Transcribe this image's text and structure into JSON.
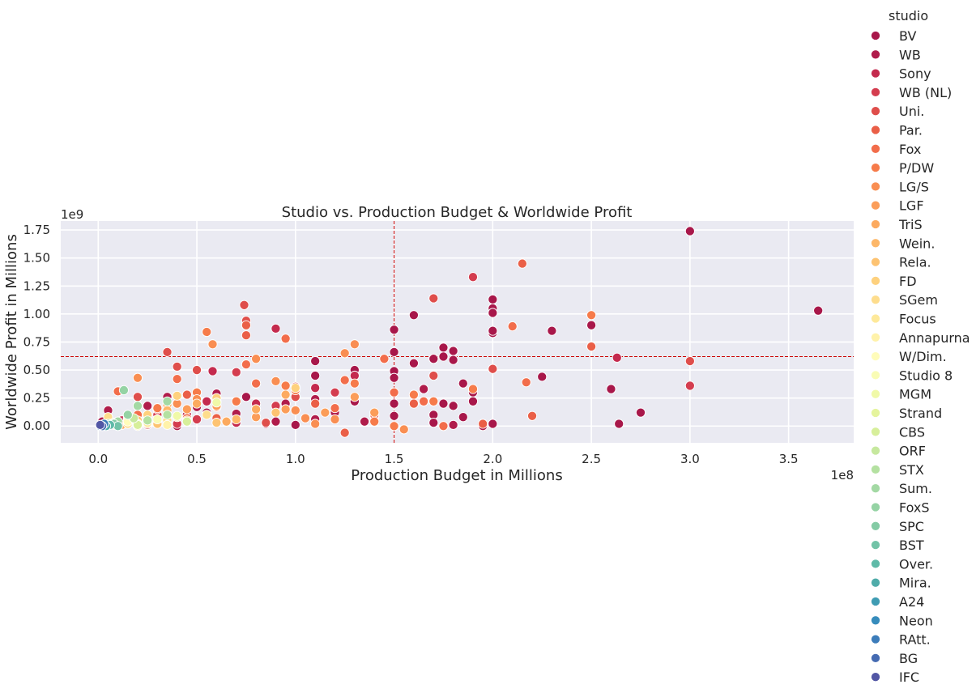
{
  "chart_data": {
    "type": "scatter",
    "title": "Studio vs. Production Budget & Worldwide Profit",
    "xlabel": "Production Budget in Millions",
    "ylabel": "Worldwide Profit in Millions",
    "x_offset_label": "1e8",
    "y_offset_label": "1e9",
    "xlim": [
      -0.19,
      3.83
    ],
    "ylim": [
      -0.15,
      1.83
    ],
    "x_ticks": [
      0.0,
      0.5,
      1.0,
      1.5,
      2.0,
      2.5,
      3.0,
      3.5
    ],
    "x_tick_labels": [
      "0.0",
      "0.5",
      "1.0",
      "1.5",
      "2.0",
      "2.5",
      "3.0",
      "3.5"
    ],
    "y_ticks": [
      0.0,
      0.25,
      0.5,
      0.75,
      1.0,
      1.25,
      1.5,
      1.75
    ],
    "y_tick_labels": [
      "0.00",
      "0.25",
      "0.50",
      "0.75",
      "1.00",
      "1.25",
      "1.50",
      "1.75"
    ],
    "vline_x": 1.5,
    "hline_y": 0.62,
    "grid": true,
    "legend_title": "studio",
    "legend_position": "right",
    "series": [
      {
        "name": "BV",
        "color": "#a8174a",
        "points": [
          [
            3.65,
            1.03
          ],
          [
            3.0,
            1.74
          ],
          [
            2.75,
            0.12
          ],
          [
            2.64,
            0.02
          ],
          [
            2.6,
            0.33
          ],
          [
            2.5,
            0.9
          ],
          [
            2.3,
            0.85
          ],
          [
            2.25,
            0.44
          ],
          [
            2.0,
            1.13
          ],
          [
            2.0,
            1.05
          ],
          [
            2.0,
            1.01
          ],
          [
            2.0,
            0.83
          ],
          [
            2.0,
            0.85
          ],
          [
            2.0,
            0.02
          ],
          [
            1.9,
            0.3
          ],
          [
            1.9,
            0.22
          ],
          [
            1.85,
            0.38
          ],
          [
            1.85,
            0.08
          ],
          [
            1.8,
            0.67
          ],
          [
            1.8,
            0.59
          ],
          [
            1.8,
            0.18
          ],
          [
            1.75,
            0.7
          ],
          [
            1.75,
            0.62
          ],
          [
            1.75,
            0.2
          ],
          [
            1.7,
            0.6
          ],
          [
            1.7,
            0.1
          ],
          [
            1.7,
            0.03
          ],
          [
            1.6,
            0.99
          ],
          [
            1.6,
            0.56
          ],
          [
            1.5,
            0.86
          ],
          [
            1.5,
            0.66
          ],
          [
            1.5,
            0.49
          ],
          [
            1.5,
            0.43
          ],
          [
            1.5,
            0.2
          ],
          [
            1.5,
            0.09
          ],
          [
            1.5,
            0.0
          ],
          [
            1.3,
            0.5
          ],
          [
            1.3,
            0.22
          ],
          [
            1.1,
            0.58
          ],
          [
            1.1,
            0.45
          ],
          [
            1.0,
            0.01
          ],
          [
            0.75,
            0.26
          ],
          [
            0.6,
            0.03
          ],
          [
            0.55,
            0.12
          ],
          [
            0.45,
            0.05
          ],
          [
            0.3,
            0.02
          ],
          [
            0.2,
            0.06
          ]
        ]
      },
      {
        "name": "WB",
        "color": "#b01c4b",
        "points": [
          [
            1.95,
            0.0
          ],
          [
            1.8,
            0.01
          ],
          [
            1.65,
            0.33
          ],
          [
            1.4,
            0.09
          ],
          [
            1.35,
            0.04
          ],
          [
            1.2,
            0.12
          ],
          [
            1.1,
            0.24
          ],
          [
            1.1,
            0.06
          ],
          [
            0.95,
            0.2
          ],
          [
            0.9,
            0.04
          ],
          [
            0.85,
            0.02
          ],
          [
            0.7,
            0.11
          ],
          [
            0.6,
            0.29
          ],
          [
            0.5,
            0.17
          ],
          [
            0.4,
            0.0
          ],
          [
            0.35,
            0.26
          ],
          [
            0.25,
            0.18
          ],
          [
            0.15,
            0.08
          ],
          [
            0.05,
            0.14
          ],
          [
            0.02,
            0.04
          ]
        ]
      },
      {
        "name": "Sony",
        "color": "#c42a4e",
        "points": [
          [
            2.63,
            0.61
          ],
          [
            1.3,
            0.45
          ],
          [
            1.1,
            0.34
          ],
          [
            0.9,
            0.87
          ],
          [
            0.8,
            0.2
          ],
          [
            0.7,
            0.03
          ],
          [
            0.58,
            0.49
          ],
          [
            0.55,
            0.22
          ],
          [
            0.45,
            0.1
          ],
          [
            0.35,
            0.06
          ],
          [
            0.25,
            0.01
          ],
          [
            0.12,
            0.05
          ]
        ]
      },
      {
        "name": "WB (NL)",
        "color": "#d43d4f",
        "points": [
          [
            3.0,
            0.36
          ],
          [
            1.9,
            1.33
          ],
          [
            1.2,
            0.3
          ],
          [
            1.0,
            0.35
          ],
          [
            0.9,
            0.18
          ],
          [
            0.7,
            0.48
          ],
          [
            0.5,
            0.06
          ],
          [
            0.4,
            0.02
          ],
          [
            0.3,
            0.1
          ]
        ]
      },
      {
        "name": "Uni.",
        "color": "#df4e4b",
        "points": [
          [
            3.0,
            0.58
          ],
          [
            2.0,
            0.51
          ],
          [
            1.7,
            1.14
          ],
          [
            1.7,
            0.45
          ],
          [
            1.6,
            0.28
          ],
          [
            1.4,
            0.1
          ],
          [
            1.0,
            0.26
          ],
          [
            0.85,
            0.03
          ],
          [
            0.75,
            0.94
          ],
          [
            0.74,
            1.08
          ],
          [
            0.6,
            0.22
          ],
          [
            0.5,
            0.5
          ],
          [
            0.4,
            0.53
          ],
          [
            0.35,
            0.66
          ],
          [
            0.2,
            0.26
          ]
        ]
      },
      {
        "name": "Par.",
        "color": "#ea5f47",
        "points": [
          [
            2.5,
            0.71
          ],
          [
            2.15,
            1.45
          ],
          [
            2.2,
            0.09
          ],
          [
            1.95,
            0.02
          ],
          [
            1.75,
            0.0
          ],
          [
            1.6,
            0.2
          ],
          [
            1.25,
            -0.06
          ],
          [
            1.1,
            0.2
          ],
          [
            0.75,
            0.81
          ],
          [
            0.75,
            0.9
          ],
          [
            0.6,
            0.07
          ],
          [
            0.45,
            0.28
          ],
          [
            0.3,
            0.15
          ],
          [
            0.15,
            0.03
          ]
        ]
      },
      {
        "name": "Fox",
        "color": "#f26d4b",
        "points": [
          [
            2.17,
            0.39
          ],
          [
            2.1,
            0.89
          ],
          [
            1.75,
            0.0
          ],
          [
            1.65,
            0.22
          ],
          [
            1.5,
            0.3
          ],
          [
            1.45,
            0.6
          ],
          [
            1.25,
            0.41
          ],
          [
            1.2,
            0.16
          ],
          [
            0.95,
            0.78
          ],
          [
            0.8,
            0.38
          ],
          [
            0.75,
            0.55
          ],
          [
            0.6,
            0.17
          ],
          [
            0.45,
            0.07
          ],
          [
            0.4,
            0.42
          ],
          [
            0.2,
            0.1
          ],
          [
            0.1,
            0.31
          ]
        ]
      },
      {
        "name": "P/DW",
        "color": "#f67b4a",
        "points": [
          [
            2.5,
            0.99
          ],
          [
            1.9,
            0.33
          ],
          [
            1.7,
            0.22
          ],
          [
            1.6,
            0.28
          ],
          [
            1.5,
            0.0
          ],
          [
            1.4,
            0.04
          ],
          [
            1.3,
            0.38
          ],
          [
            1.0,
            0.32
          ],
          [
            0.95,
            0.36
          ],
          [
            0.7,
            0.22
          ],
          [
            0.55,
            0.84
          ],
          [
            0.5,
            0.3
          ],
          [
            0.3,
            0.16
          ]
        ]
      },
      {
        "name": "LG/S",
        "color": "#f98e52",
        "points": [
          [
            1.55,
            -0.03
          ],
          [
            1.3,
            0.73
          ],
          [
            1.25,
            0.65
          ],
          [
            1.2,
            0.06
          ],
          [
            1.1,
            0.02
          ],
          [
            1.05,
            0.07
          ],
          [
            1.0,
            0.14
          ],
          [
            0.9,
            0.4
          ],
          [
            0.8,
            0.6
          ],
          [
            0.58,
            0.73
          ],
          [
            0.5,
            0.24
          ],
          [
            0.4,
            0.2
          ],
          [
            0.2,
            0.43
          ],
          [
            0.1,
            0.04
          ]
        ]
      },
      {
        "name": "LGF",
        "color": "#fb9d59",
        "points": [
          [
            1.4,
            0.12
          ],
          [
            1.3,
            0.26
          ],
          [
            1.15,
            0.12
          ],
          [
            0.95,
            0.15
          ],
          [
            0.8,
            0.08
          ],
          [
            0.6,
            0.18
          ],
          [
            0.45,
            0.15
          ],
          [
            0.3,
            0.04
          ],
          [
            0.15,
            0.02
          ],
          [
            0.05,
            0.01
          ]
        ]
      },
      {
        "name": "TriS",
        "color": "#fcaa5f",
        "points": [
          [
            0.95,
            0.28
          ],
          [
            0.8,
            0.15
          ],
          [
            0.65,
            0.04
          ],
          [
            0.5,
            0.2
          ],
          [
            0.35,
            0.19
          ],
          [
            0.25,
            0.08
          ],
          [
            0.12,
            0.01
          ]
        ]
      },
      {
        "name": "Wein.",
        "color": "#fdb768",
        "points": [
          [
            0.7,
            0.06
          ],
          [
            0.55,
            0.1
          ],
          [
            0.45,
            0.05
          ],
          [
            0.35,
            0.14
          ],
          [
            0.25,
            0.02
          ],
          [
            0.15,
            0.07
          ],
          [
            0.05,
            0.03
          ]
        ]
      },
      {
        "name": "Rela.",
        "color": "#fdc372",
        "points": [
          [
            0.9,
            0.12
          ],
          [
            0.6,
            0.03
          ],
          [
            0.4,
            0.08
          ],
          [
            0.3,
            0.02
          ],
          [
            0.2,
            0.05
          ],
          [
            0.08,
            0.01
          ]
        ]
      },
      {
        "name": "FD",
        "color": "#fed17e",
        "points": [
          [
            1.0,
            0.34
          ],
          [
            0.6,
            0.25
          ],
          [
            0.4,
            0.27
          ],
          [
            0.25,
            0.1
          ],
          [
            0.1,
            0.0
          ]
        ]
      },
      {
        "name": "SGem",
        "color": "#fedd8d",
        "points": [
          [
            0.55,
            0.1
          ],
          [
            0.35,
            0.05
          ],
          [
            0.15,
            0.02
          ],
          [
            0.05,
            0.08
          ]
        ]
      },
      {
        "name": "Focus",
        "color": "#fee99a",
        "points": [
          [
            0.25,
            0.03
          ],
          [
            0.15,
            0.06
          ],
          [
            0.06,
            0.02
          ],
          [
            0.02,
            0.01
          ]
        ]
      },
      {
        "name": "Annapurna",
        "color": "#fff2aa",
        "points": [
          [
            0.35,
            0.01
          ],
          [
            0.2,
            0.0
          ],
          [
            0.1,
            0.03
          ]
        ]
      },
      {
        "name": "W/Dim.",
        "color": "#fffcba",
        "points": [
          [
            0.15,
            0.04
          ],
          [
            0.08,
            0.02
          ],
          [
            0.03,
            0.0
          ]
        ]
      },
      {
        "name": "Studio 8",
        "color": "#f9fcb5",
        "points": [
          [
            0.3,
            0.06
          ]
        ]
      },
      {
        "name": "MGM",
        "color": "#f0f9a8",
        "points": [
          [
            0.6,
            0.21
          ],
          [
            0.4,
            0.09
          ],
          [
            0.2,
            0.02
          ]
        ]
      },
      {
        "name": "Strand",
        "color": "#e5f49d",
        "points": [
          [
            0.05,
            0.02
          ],
          [
            0.02,
            0.01
          ]
        ]
      },
      {
        "name": "CBS",
        "color": "#d7ef9b",
        "points": [
          [
            0.45,
            0.04
          ],
          [
            0.2,
            0.01
          ]
        ]
      },
      {
        "name": "ORF",
        "color": "#c6e89e",
        "points": [
          [
            0.18,
            0.07
          ],
          [
            0.08,
            0.03
          ]
        ]
      },
      {
        "name": "STX",
        "color": "#b4e1a1",
        "points": [
          [
            0.35,
            0.1
          ],
          [
            0.25,
            0.05
          ],
          [
            0.1,
            0.01
          ]
        ]
      },
      {
        "name": "Sum.",
        "color": "#a3d9a4",
        "points": [
          [
            0.35,
            0.22
          ],
          [
            0.2,
            0.18
          ],
          [
            0.1,
            0.04
          ]
        ]
      },
      {
        "name": "FoxS",
        "color": "#95d3a4",
        "points": [
          [
            0.13,
            0.32
          ],
          [
            0.15,
            0.1
          ],
          [
            0.05,
            0.02
          ]
        ]
      },
      {
        "name": "SPC",
        "color": "#84cba5",
        "points": [
          [
            0.08,
            0.02
          ],
          [
            0.03,
            0.01
          ]
        ]
      },
      {
        "name": "BST",
        "color": "#72c3a7",
        "points": [
          [
            0.1,
            0.0
          ]
        ]
      },
      {
        "name": "Over.",
        "color": "#5fbaa8",
        "points": [
          [
            0.06,
            0.01
          ]
        ]
      },
      {
        "name": "Mira.",
        "color": "#4faca9",
        "points": [
          [
            0.04,
            0.0
          ]
        ]
      },
      {
        "name": "A24",
        "color": "#3f9cb3",
        "points": [
          [
            0.02,
            0.01
          ]
        ]
      },
      {
        "name": "Neon",
        "color": "#368cbc",
        "points": [
          [
            0.01,
            0.0
          ]
        ]
      },
      {
        "name": "RAtt.",
        "color": "#3c7cba",
        "points": [
          [
            0.03,
            0.02
          ]
        ]
      },
      {
        "name": "BG",
        "color": "#456bb2",
        "points": [
          [
            0.02,
            0.0
          ]
        ]
      },
      {
        "name": "IFC",
        "color": "#5257a5",
        "points": [
          [
            0.01,
            0.01
          ]
        ]
      }
    ]
  }
}
